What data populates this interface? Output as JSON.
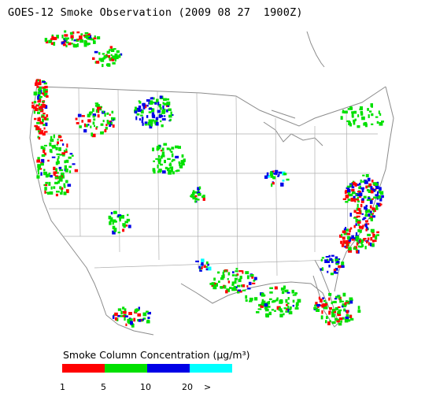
{
  "title": "GOES-12 Smoke Observation (2009 08 27  1900Z)",
  "legend": {
    "title": "Smoke Column Concentration (μg/m³)",
    "ticks": [
      "1",
      "5",
      "10",
      "20",
      ">"
    ],
    "bins": [
      {
        "range": "1-5",
        "color": "#ff0000"
      },
      {
        "range": "5-10",
        "color": "#00e000"
      },
      {
        "range": "10-20",
        "color": "#0000e6"
      },
      {
        "range": "20+",
        "color": "#00ffff"
      }
    ]
  },
  "map": {
    "boundary_color": "#9a9a9a",
    "coast_color": "#8c8c8c"
  }
}
